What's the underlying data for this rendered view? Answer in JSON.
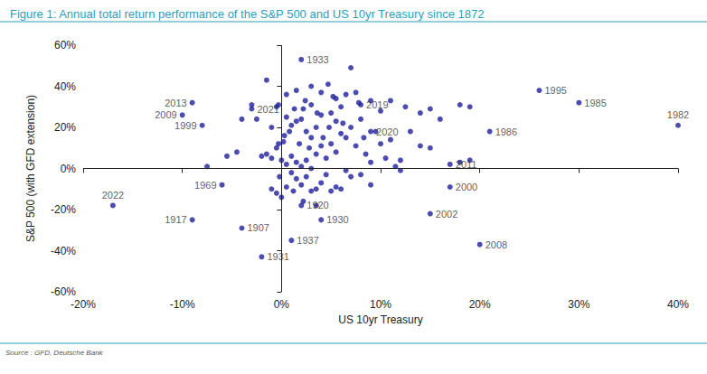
{
  "chart_data": {
    "type": "scatter",
    "title": "Figure 1: Annual total return performance of the S&P 500 and US 10yr Treasury since 1872",
    "x_label": "US 10yr Treasury",
    "y_label": "S&P 500 (with GFD extension)",
    "source": "Source : GFD, Deutsche Bank",
    "color": "#1f1f9c",
    "marker": "circle",
    "grid": false,
    "xlim": [
      -20,
      40
    ],
    "xticks": [
      {
        "value": -20,
        "label": "-20%"
      },
      {
        "value": -10,
        "label": "-10%"
      },
      {
        "value": 0,
        "label": "0%"
      },
      {
        "value": 10,
        "label": "10%"
      },
      {
        "value": 20,
        "label": "20%"
      },
      {
        "value": 30,
        "label": "30%"
      },
      {
        "value": 40,
        "label": "40%"
      }
    ],
    "ylim": [
      -60,
      60
    ],
    "yticks": [
      {
        "value": -60,
        "label": "-60%"
      },
      {
        "value": -40,
        "label": "-40%"
      },
      {
        "value": -20,
        "label": "-20%"
      },
      {
        "value": 0,
        "label": "0%"
      },
      {
        "value": 20,
        "label": "20%"
      },
      {
        "value": 40,
        "label": "40%"
      },
      {
        "value": 60,
        "label": "60%"
      }
    ],
    "x": [
      2,
      -9,
      -10,
      -8,
      -3,
      8,
      9,
      26,
      30,
      40,
      21,
      17,
      17,
      15,
      20,
      -6,
      -17,
      -9,
      -4,
      -2,
      2,
      4,
      1,
      -1.5,
      0.5,
      1.5,
      3,
      4,
      4.7,
      5.5,
      7,
      6.5,
      7.5,
      9,
      11,
      12.5,
      14,
      15,
      16,
      18,
      19,
      10,
      6,
      3,
      2.2,
      -2.5,
      -3,
      -0.5,
      -0.3,
      -1,
      -4,
      -4.5,
      -5.5,
      -7.5,
      -2,
      -1.5,
      -1,
      -0.5,
      -0.3,
      0.2,
      0.5,
      1,
      1.5,
      2,
      2.5,
      3,
      3.5,
      4,
      5,
      5.5,
      6,
      6.5,
      7,
      7.5,
      8,
      8.5,
      9,
      10,
      11,
      11.5,
      12,
      13,
      14,
      15,
      18,
      19,
      10.5,
      9.5,
      0,
      0.5,
      1,
      1.5,
      2,
      2.5,
      3,
      3.5,
      4,
      4.5,
      5,
      5.5,
      1,
      1.5,
      2,
      2.5,
      3,
      3.5,
      4,
      4.5,
      5,
      5.5,
      6,
      0.5,
      -0.5,
      -1,
      0,
      2.2,
      3.5,
      6.5,
      7,
      8,
      9,
      12,
      1.2,
      -0.2,
      0.3,
      1.8,
      2.8,
      4.2,
      6.2,
      8.3,
      0.8,
      4.8,
      7.8,
      5.2,
      2.4,
      3.6,
      1.3
    ],
    "y": [
      53,
      32,
      26,
      21,
      29,
      31,
      18,
      38,
      32,
      21,
      18,
      2,
      -9,
      -22,
      -37,
      -8,
      -18,
      -25,
      -29,
      -43,
      -18,
      -25,
      -35,
      43,
      36,
      38,
      40,
      37,
      41,
      34,
      49,
      36,
      37,
      33,
      33,
      30,
      27,
      29,
      24,
      31,
      30,
      28,
      30,
      31,
      29,
      24,
      31,
      30,
      31,
      20,
      24,
      8,
      6,
      1,
      6,
      7,
      5,
      10,
      12,
      13,
      25,
      21,
      23,
      24,
      18,
      15,
      20,
      26,
      27,
      23,
      17,
      15,
      20,
      11,
      24,
      7,
      3,
      12,
      14,
      1,
      4,
      18,
      11,
      10,
      3,
      4,
      5,
      18,
      4,
      2,
      6,
      3,
      1,
      4,
      0,
      7,
      11,
      5,
      12,
      8,
      -2,
      -5,
      -8,
      -4,
      -11,
      -10,
      -7,
      -3,
      -11,
      -9,
      -10,
      -9,
      -12,
      -10,
      -14,
      -16,
      -18,
      -1,
      -4,
      -3,
      -8,
      -1,
      -11,
      -4,
      16,
      12,
      10,
      15,
      22,
      15,
      18,
      20,
      32,
      35,
      33,
      27,
      29
    ],
    "labels": [
      "1933",
      "2013",
      "2009",
      "1999",
      "2021",
      "2019",
      "2020",
      "1995",
      "1985",
      "1982",
      "1986",
      "2011",
      "2000",
      "2002",
      "2008",
      "1969",
      "2022",
      "1917",
      "1907",
      "1931",
      "1920",
      "1930",
      "1937",
      null,
      null,
      null,
      null,
      null,
      null,
      null,
      null,
      null,
      null,
      null,
      null,
      null,
      null,
      null,
      null,
      null,
      null,
      null,
      null,
      null,
      null,
      null,
      null,
      null,
      null,
      null,
      null,
      null,
      null,
      null,
      null,
      null,
      null,
      null,
      null,
      null,
      null,
      null,
      null,
      null,
      null,
      null,
      null,
      null,
      null,
      null,
      null,
      null,
      null,
      null,
      null,
      null,
      null,
      null,
      null,
      null,
      null,
      null,
      null,
      null,
      null,
      null,
      null,
      null,
      null,
      null,
      null,
      null,
      null,
      null,
      null,
      null,
      null,
      null,
      null,
      null,
      null,
      null,
      null,
      null,
      null,
      null,
      null,
      null,
      null,
      null,
      null,
      null,
      null,
      null,
      null,
      null,
      null,
      null,
      null,
      null,
      null,
      null,
      null,
      null,
      null,
      null,
      null,
      null,
      null,
      null,
      null,
      null,
      null,
      null,
      null,
      null
    ]
  }
}
